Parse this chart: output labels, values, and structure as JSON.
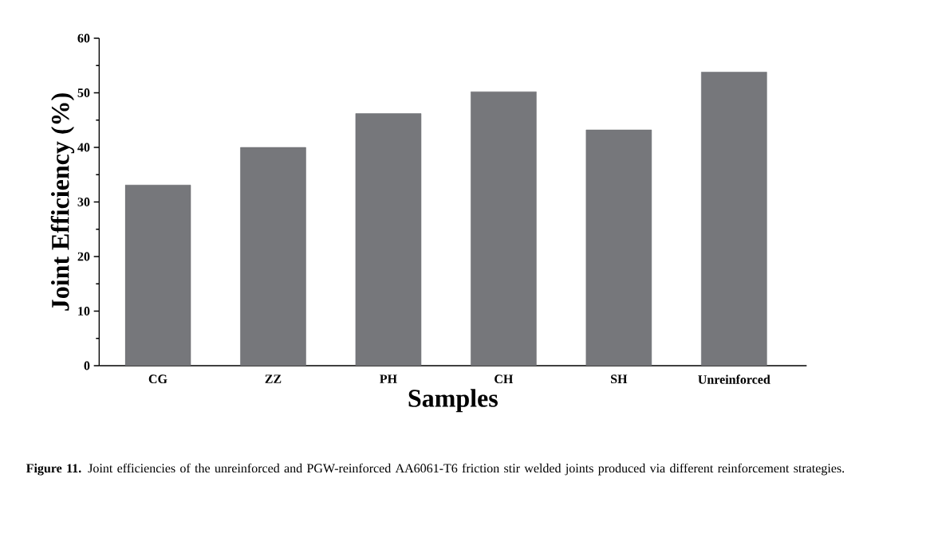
{
  "chart_data": {
    "type": "bar",
    "xlabel": "Samples",
    "ylabel": "Joint Efficiency (%)",
    "categories": [
      "CG",
      "ZZ",
      "PH",
      "CH",
      "SH",
      "Unreinforced"
    ],
    "values": [
      33.1,
      40.0,
      46.2,
      50.2,
      43.2,
      53.8
    ],
    "color": "#76777b",
    "ylim": [
      0,
      60
    ],
    "yticks": [
      0,
      10,
      20,
      30,
      40,
      50,
      60
    ],
    "annotations": [
      "**Figure 11.** Joint efficiencies of the unreinforced and PGW-reinforced AA6061-T6 friction stir welded joints produced via different reinforcement strategies."
    ]
  }
}
